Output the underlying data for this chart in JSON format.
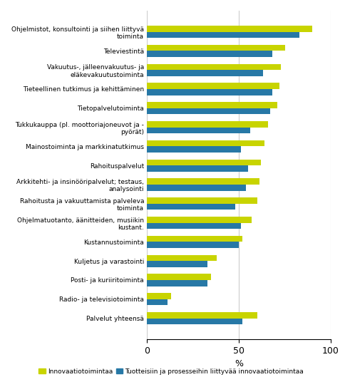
{
  "categories": [
    "Ohjelmistot, konsultointi ja siihen liittyvä\ntoiminta",
    "Televiestintä",
    "Vakuutus-, jälleenvakuutus- ja\neläkevakuutustoiminta",
    "Tieteellinen tutkimus ja kehittäminen",
    "Tietopalvelutoiminta",
    "Tukkukauppa (pl. moottoriajoneuvot ja -\npyörät)",
    "Mainostoiminta ja markkinatutkimus",
    "Rahoituspalvelut",
    "Arkkitehti- ja insinööripalvelut; testaus,\nanalysointi",
    "Rahoitusta ja vakuuttamista palveleva\ntoiminta",
    "Ohjelmatuotanto, äänitteiden, musiikin\nkustant.",
    "Kustannustoiminta",
    "Kuljetus ja varastointi",
    "Posti- ja kuriiritoiminta",
    "Radio- ja televisiotoiminta",
    "Palvelut yhteensä"
  ],
  "innovaatio": [
    90,
    75,
    73,
    72,
    71,
    66,
    64,
    62,
    61,
    60,
    57,
    52,
    38,
    35,
    13,
    60
  ],
  "tuote_prosessi": [
    83,
    68,
    63,
    68,
    67,
    56,
    51,
    55,
    54,
    48,
    51,
    50,
    33,
    33,
    11,
    52
  ],
  "color_innovaatio": "#c8d400",
  "color_tuote_prosessi": "#2778a6",
  "xlabel": "%",
  "xlim": [
    0,
    100
  ],
  "xticks": [
    0,
    50,
    100
  ],
  "legend_innovaatio": "Innovaatiotoimintaa",
  "legend_tuote_prosessi": "Tuotteisiin ja prosesseihin liittyvää innovaatiotoimintaa",
  "grid_color": "#cccccc",
  "bar_height": 0.32,
  "figsize": [
    4.91,
    5.29
  ],
  "dpi": 100
}
